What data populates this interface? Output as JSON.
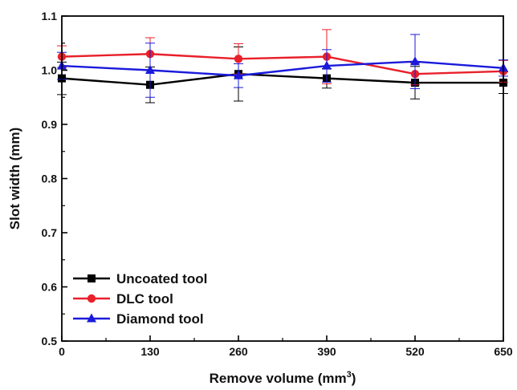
{
  "chart_data": {
    "type": "line",
    "title": "",
    "xlabel": "Remove volume (mm",
    "xlabel_sup": "3",
    "xlabel_close": ")",
    "ylabel": "Slot width (mm)",
    "x": [
      0,
      130,
      260,
      390,
      520,
      650
    ],
    "x_ticks": [
      "0",
      "130",
      "260",
      "390",
      "520",
      "650"
    ],
    "y_ticks": [
      "0.5",
      "0.6",
      "0.7",
      "0.8",
      "0.9",
      "1.0",
      "1.1"
    ],
    "xlim": [
      0,
      650
    ],
    "ylim": [
      0.5,
      1.1
    ],
    "grid": false,
    "legend_position": "bottom-left",
    "series": [
      {
        "name": "Uncoated tool",
        "color": "#000000",
        "marker": "square",
        "values": [
          0.985,
          0.973,
          0.993,
          0.985,
          0.977,
          0.977
        ],
        "errors": [
          0.03,
          0.033,
          0.05,
          0.018,
          0.03,
          0.02
        ]
      },
      {
        "name": "DLC tool",
        "color": "#e8202a",
        "marker": "circle",
        "values": [
          1.025,
          1.03,
          1.021,
          1.025,
          0.993,
          0.998
        ],
        "errors": [
          0.02,
          0.03,
          0.028,
          0.05,
          0.02,
          0.02
        ]
      },
      {
        "name": "Diamond tool",
        "color": "#1a1adc",
        "marker": "triangle",
        "values": [
          1.008,
          1.0,
          0.99,
          1.008,
          1.016,
          1.004
        ],
        "errors": [
          0.025,
          0.05,
          0.022,
          0.03,
          0.05,
          0.015
        ]
      }
    ]
  }
}
